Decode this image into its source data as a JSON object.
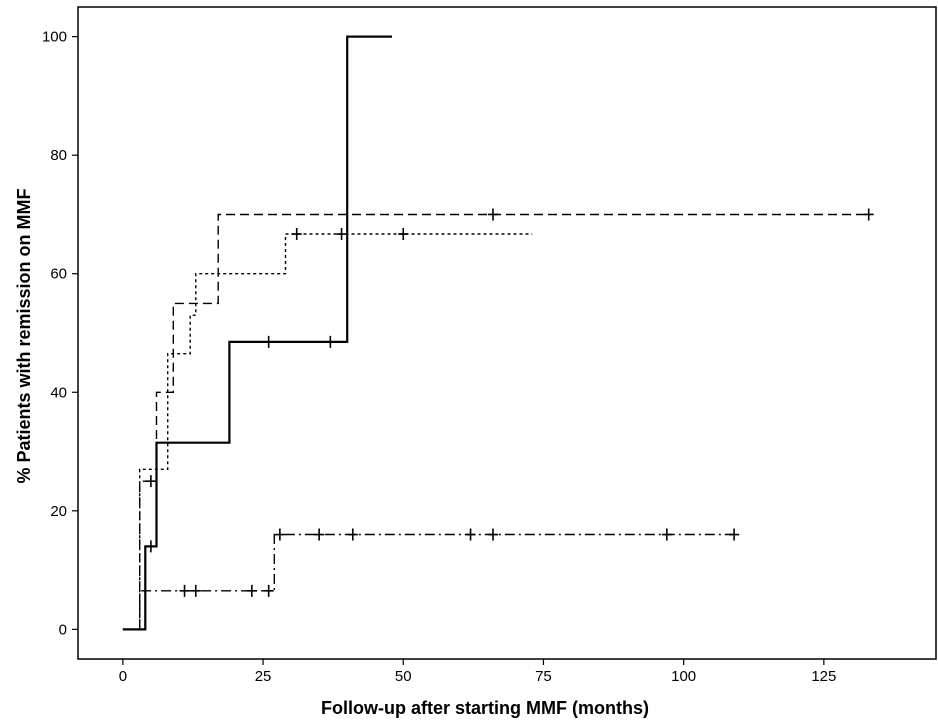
{
  "chart_data": {
    "type": "line",
    "step": true,
    "title": "",
    "xlabel": "Follow-up after starting MMF (months)",
    "ylabel": "% Patients with remission on MMF",
    "xlim": [
      -8,
      145
    ],
    "ylim": [
      -5,
      105
    ],
    "xticks": [
      0,
      25,
      50,
      75,
      100,
      125
    ],
    "yticks": [
      0,
      20,
      40,
      60,
      80,
      100
    ],
    "grid": false,
    "legend": "none",
    "series": [
      {
        "style": "solid",
        "color": "#000000",
        "points": [
          [
            0,
            0
          ],
          [
            4,
            0
          ],
          [
            4,
            14
          ],
          [
            6,
            14
          ],
          [
            6,
            31.5
          ],
          [
            19,
            31.5
          ],
          [
            19,
            48.5
          ],
          [
            40,
            48.5
          ],
          [
            40,
            100
          ],
          [
            48,
            100
          ]
        ],
        "censored": [
          [
            5,
            14
          ],
          [
            26,
            48.5
          ],
          [
            37,
            48.5
          ]
        ]
      },
      {
        "style": "dashed",
        "color": "#000000",
        "points": [
          [
            0,
            0
          ],
          [
            3,
            0
          ],
          [
            3,
            25
          ],
          [
            6,
            25
          ],
          [
            6,
            40
          ],
          [
            9,
            40
          ],
          [
            9,
            55
          ],
          [
            17,
            55
          ],
          [
            17,
            70
          ],
          [
            133,
            70
          ]
        ],
        "censored": [
          [
            5,
            25
          ],
          [
            66,
            70
          ],
          [
            133,
            70
          ]
        ]
      },
      {
        "style": "dotted",
        "color": "#000000",
        "points": [
          [
            0,
            0
          ],
          [
            3,
            0
          ],
          [
            3,
            27
          ],
          [
            8,
            27
          ],
          [
            8,
            46.5
          ],
          [
            12,
            46.5
          ],
          [
            12,
            53
          ],
          [
            13,
            53
          ],
          [
            13,
            60
          ],
          [
            29,
            60
          ],
          [
            29,
            66.7
          ],
          [
            73,
            66.7
          ]
        ],
        "censored": [
          [
            31,
            66.7
          ],
          [
            39,
            66.7
          ],
          [
            50,
            66.7
          ]
        ]
      },
      {
        "style": "dashdot",
        "color": "#000000",
        "points": [
          [
            3,
            0
          ],
          [
            3,
            6.5
          ],
          [
            27,
            6.5
          ],
          [
            27,
            16
          ],
          [
            109,
            16
          ]
        ],
        "censored": [
          [
            11,
            6.5
          ],
          [
            13,
            6.5
          ],
          [
            23,
            6.5
          ],
          [
            26,
            6.5
          ],
          [
            28,
            16
          ],
          [
            35,
            16
          ],
          [
            41,
            16
          ],
          [
            62,
            16
          ],
          [
            66,
            16
          ],
          [
            97,
            16
          ],
          [
            109,
            16
          ]
        ]
      }
    ]
  }
}
